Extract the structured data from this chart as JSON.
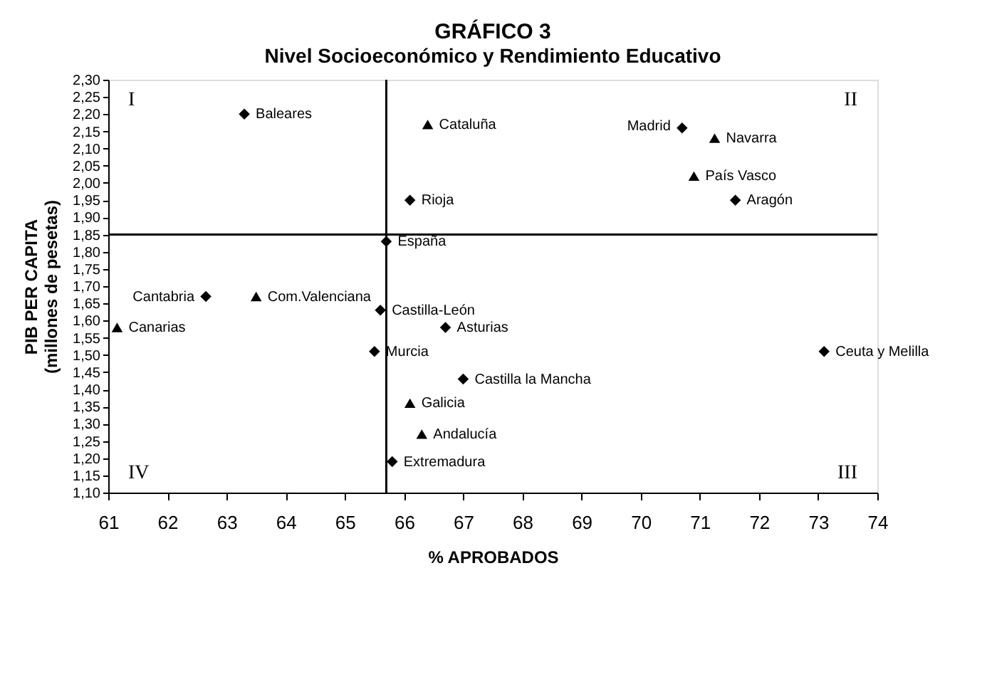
{
  "chart_data": {
    "type": "scatter",
    "title": "GRÁFICO 3",
    "subtitle": "Nivel Socioeconómico y Rendimiento Educativo",
    "xlabel": "% APROBADOS",
    "ylabel": "PIB PER CAPITA\n(millones de pesetas)",
    "series": [
      {
        "color": "#000000",
        "marker": "diamond",
        "x": [
          63.3,
          66.1,
          65.7,
          62.65,
          65.6,
          66.7,
          65.5,
          67.0,
          65.8,
          73.1,
          70.7,
          71.6
        ],
        "values": [
          2.2,
          1.95,
          1.83,
          1.67,
          1.63,
          1.58,
          1.51,
          1.43,
          1.19,
          1.51,
          2.16,
          1.95
        ]
      },
      {
        "color": "#000000",
        "marker": "triangle",
        "x": [
          66.4,
          63.5,
          61.15,
          66.1,
          66.3,
          71.25,
          70.9
        ],
        "values": [
          2.17,
          1.67,
          1.58,
          1.36,
          1.27,
          2.13,
          2.02
        ]
      }
    ],
    "annotations": [
      {
        "text": "Baleares",
        "x": 63.3,
        "y": 2.2
      },
      {
        "text": "Cataluña",
        "x": 66.4,
        "y": 2.17
      },
      {
        "text": "Madrid",
        "x": 70.7,
        "y": 2.165
      },
      {
        "text": "Navarra",
        "x": 71.25,
        "y": 2.13
      },
      {
        "text": "País Vasco",
        "x": 70.9,
        "y": 2.02
      },
      {
        "text": "Aragón",
        "x": 71.6,
        "y": 1.95
      },
      {
        "text": "Rioja",
        "x": 66.1,
        "y": 1.95
      },
      {
        "text": "España",
        "x": 65.7,
        "y": 1.83
      },
      {
        "text": "Com.Valenciana",
        "x": 63.5,
        "y": 1.67
      },
      {
        "text": "Castilla-León",
        "x": 65.6,
        "y": 1.63
      },
      {
        "text": "Canarias",
        "x": 61.15,
        "y": 1.58
      },
      {
        "text": "Asturias",
        "x": 66.7,
        "y": 1.58
      },
      {
        "text": "Murcia",
        "x": 65.5,
        "y": 1.51
      },
      {
        "text": "Castilla la Mancha",
        "x": 67.0,
        "y": 1.43
      },
      {
        "text": "Galicia",
        "x": 66.1,
        "y": 1.36
      },
      {
        "text": "Andalucía",
        "x": 66.3,
        "y": 1.27
      },
      {
        "text": "Extremadura",
        "x": 65.8,
        "y": 1.19
      },
      {
        "text": "Ceuta y Melilla",
        "x": 73.1,
        "y": 1.51
      },
      {
        "text": "Cantabria",
        "x": 62.65,
        "y": 1.67
      },
      "I",
      "II",
      "III",
      "IV"
    ],
    "ref_lines": [
      {
        "axis": "x",
        "value": 65.7
      },
      {
        "axis": "y",
        "value": 1.85
      }
    ],
    "xlim": [
      61,
      74
    ],
    "xticks": [
      61,
      62,
      63,
      64,
      65,
      66,
      67,
      68,
      69,
      70,
      71,
      72,
      73,
      74
    ],
    "ylim": [
      1.1,
      2.3
    ],
    "yticks": [
      {
        "value": 1.1,
        "label": "1,10"
      },
      {
        "value": 1.15,
        "label": "1,15"
      },
      {
        "value": 1.2,
        "label": "1,20"
      },
      {
        "value": 1.25,
        "label": "1,25"
      },
      {
        "value": 1.3,
        "label": "1,30"
      },
      {
        "value": 1.35,
        "label": "1,35"
      },
      {
        "value": 1.4,
        "label": "1,40"
      },
      {
        "value": 1.45,
        "label": "1,45"
      },
      {
        "value": 1.5,
        "label": "1,50"
      },
      {
        "value": 1.55,
        "label": "1,55"
      },
      {
        "value": 1.6,
        "label": "1,60"
      },
      {
        "value": 1.65,
        "label": "1,65"
      },
      {
        "value": 1.7,
        "label": "1,70"
      },
      {
        "value": 1.75,
        "label": "1,75"
      },
      {
        "value": 1.8,
        "label": "1,80"
      },
      {
        "value": 1.85,
        "label": "1,85"
      },
      {
        "value": 1.9,
        "label": "1,90"
      },
      {
        "value": 1.95,
        "label": "1,95"
      },
      {
        "value": 2.0,
        "label": "2,00"
      },
      {
        "value": 2.05,
        "label": "2,05"
      },
      {
        "value": 2.1,
        "label": "2,10"
      },
      {
        "value": 2.15,
        "label": "2,15"
      },
      {
        "value": 2.2,
        "label": "2,20"
      },
      {
        "value": 2.25,
        "label": "2,25"
      },
      {
        "value": 2.3,
        "label": "2,30"
      }
    ],
    "grid": false
  }
}
